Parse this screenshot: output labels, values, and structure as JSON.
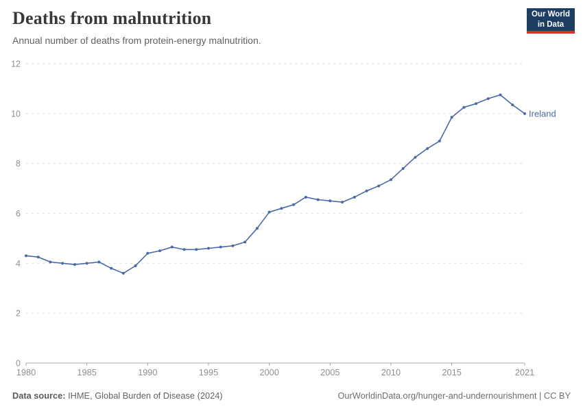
{
  "header": {
    "title": "Deaths from malnutrition",
    "subtitle": "Annual number of deaths from protein-energy malnutrition."
  },
  "logo": {
    "line1": "Our World",
    "line2": "in Data",
    "bg_color": "#1d3d63",
    "accent_color": "#e02f23"
  },
  "chart_data": {
    "type": "line",
    "title": "Deaths from malnutrition",
    "subtitle": "Annual number of deaths from protein-energy malnutrition.",
    "x": [
      1980,
      1981,
      1982,
      1983,
      1984,
      1985,
      1986,
      1987,
      1988,
      1989,
      1990,
      1991,
      1992,
      1993,
      1994,
      1995,
      1996,
      1997,
      1998,
      1999,
      2000,
      2001,
      2002,
      2003,
      2004,
      2005,
      2006,
      2007,
      2008,
      2009,
      2010,
      2011,
      2012,
      2013,
      2014,
      2015,
      2016,
      2017,
      2018,
      2019,
      2020,
      2021
    ],
    "series": [
      {
        "name": "Ireland",
        "color": "#4a69a8",
        "values": [
          4.3,
          4.25,
          4.05,
          4.0,
          3.95,
          4.0,
          4.05,
          3.8,
          3.6,
          3.9,
          4.4,
          4.5,
          4.65,
          4.55,
          4.55,
          4.6,
          4.65,
          4.7,
          4.85,
          5.4,
          6.05,
          6.2,
          6.35,
          6.65,
          6.55,
          6.5,
          6.45,
          6.65,
          6.9,
          7.1,
          7.35,
          7.8,
          8.25,
          8.6,
          8.9,
          9.85,
          10.25,
          10.4,
          10.6,
          10.75,
          10.35,
          10.0
        ]
      }
    ],
    "end_label": "Ireland",
    "xlabel": "",
    "ylabel": "",
    "xlim": [
      1980,
      2021
    ],
    "ylim": [
      0,
      12
    ],
    "yticks": [
      0,
      2,
      4,
      6,
      8,
      10,
      12
    ],
    "xticks": [
      1980,
      1985,
      1990,
      1995,
      2000,
      2005,
      2010,
      2015,
      2021
    ],
    "grid": "horizontal-dashed",
    "legend_position": "end-of-line",
    "axis_color": "#a8a8a8",
    "tick_label_color": "#8f8f8f",
    "gridline_color": "#dadada"
  },
  "footer": {
    "source_label": "Data source:",
    "source_text": "IHME, Global Burden of Disease (2024)",
    "link_text": "OurWorldinData.org/hunger-and-undernourishment | CC BY"
  }
}
